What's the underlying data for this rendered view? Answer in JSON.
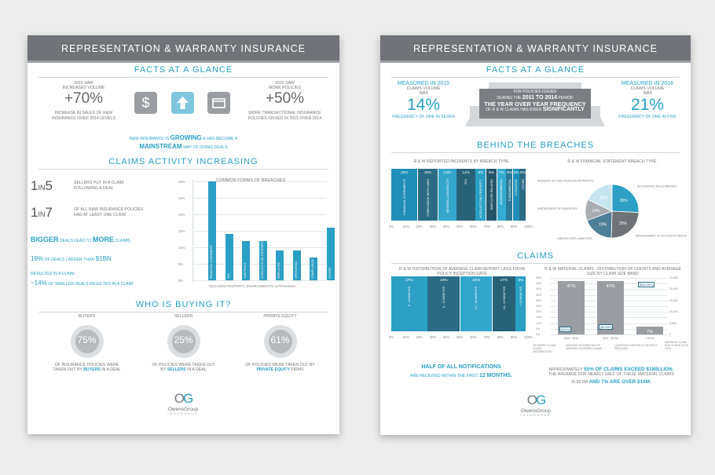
{
  "page1": {
    "banner": "REPRESENTATION & WARRANTY INSURANCE",
    "facts_title": "FACTS AT A GLANCE",
    "left_stat": {
      "caption1": "2015 SAW",
      "caption2": "INCREASED VOLUME",
      "value": "+70%",
      "note1": "INCREASE IN SALES OF R&W",
      "note2": "INSURANCE OVER 2014 LEVELS"
    },
    "right_stat": {
      "caption1": "2015 SAW",
      "caption2": "MORE POLICIES",
      "value": "+50%",
      "note1": "MORE TRANSACTIONAL INSURANCE",
      "note2": "POLICIES ISSUED IN 2015 OVER 2014"
    },
    "icons": [
      "dollar-icon",
      "arrow-up-icon",
      "folder-icon"
    ],
    "growing": {
      "p1": "R&W INSURANCE IS ",
      "p2": "GROWING",
      "p3": " & HAS BECOME A",
      "p4": "MAINSTREAM",
      "p5": " WAY OF DOING DEALS"
    },
    "claims_title": "CLAIMS ACTIVITY INCREASING",
    "ratio1": {
      "n": "1",
      "in": "IN",
      "d": "5",
      "t1": "SELLERS PUT IN A CLAIM",
      "t2": "FOLLOWING A DEAL"
    },
    "ratio2": {
      "n": "1",
      "in": "IN",
      "d": "7",
      "t1": "OF ALL R&W INSURANCE POLICIES",
      "t2": "HAD AT LEAST ONE CLAIM"
    },
    "bigger": {
      "p1": "BIGGER",
      "p2": " DEALS LEAD TO ",
      "p3": "MORE",
      "p4": " CLAIMS"
    },
    "pct19": {
      "p1": "19%",
      "p2": " OF DEALS LARGER THAN ",
      "p3": "$1BN",
      "p4": "RESULTED IN A CLAIM"
    },
    "pct14": {
      "p1": "~14%",
      "p2": " OF SMALLER DEALS RESULTED IN A CLAIM"
    },
    "buying_title": "WHO IS BUYING IT?",
    "buyers": [
      {
        "title": "BUYERS",
        "pct": "75%",
        "value": 75,
        "t1": "OF INSURANCE POLICIES WERE",
        "t2a": "TAKEN OUT BY ",
        "t2b": "BUYERS",
        "t2c": " IN A DEAL"
      },
      {
        "title": "SELLERS",
        "pct": "25%",
        "value": 25,
        "t1": "OF POLICIES WERE TAKEN OUT",
        "t2a": "BY ",
        "t2b": "SELLERS",
        "t2c": " IN A DEAL"
      },
      {
        "title": "PRIVATE EQUITY",
        "pct": "61%",
        "value": 61,
        "t1": "OF POLICIES WERE TAKEN OUT BY",
        "t2a": "",
        "t2b": "PRIVATE EQUITY",
        "t2c": " FIRMS"
      }
    ],
    "logo": {
      "name": "OwensGroup",
      "sub": "INSURANCE"
    }
  },
  "page2": {
    "banner": "REPRESENTATION & WARRANTY INSURANCE",
    "facts_title": "FACTS AT A GLANCE",
    "left": {
      "c1": "MEASURED IN 2015",
      "c2": "CLAIMS VOLUME",
      "c3": "WAS",
      "value": "14%",
      "note": "FREQUENCY OF ONE IN SEVEN"
    },
    "right": {
      "c1": "MEASURED IN 2016",
      "c2": "CLAIMS VOLUME",
      "c3": "WAS",
      "value": "21%",
      "note": "FREQUENCY OF ONE IN FIVE"
    },
    "arrow": {
      "l1": "FOR POLICIES ISSUED",
      "l2a": "DURING THE ",
      "l2b": "2011 TO 2014",
      "l2c": " PERIOD",
      "l3": "THE YEAR OVER YEAR FREQUENCY",
      "l4a": "OF R & W CLAIMS HAS RISEN ",
      "l4b": "SIGNIFICANTLY"
    },
    "breaches_title": "BEHIND THE BREACHES",
    "logo": {
      "name": "OwensGroup",
      "sub": "INSURANCE"
    },
    "claims_title": "CLAIMS",
    "half": {
      "l1a": "HALF OF ALL NOTIFICATIONS",
      "l2a": "ARE RECEIVED WITHIN THE FIRST ",
      "l2b": "12 MONTHS."
    },
    "exceed": {
      "l1a": "APPROXIMATELY ",
      "l1b": "55% OF CLAIMS EXCEED $1MILLION.",
      "l2": "THE AVERAGE FOR NEARLY HALF OF THESE MATERIAL CLAIMS",
      "l3a": "IS $3.5M ",
      "l3b": "AND 7% ARE OVER $10M."
    }
  },
  "chart_data": [
    {
      "type": "bar",
      "title": "COMMON FORMS OF BREACHES",
      "categories": [
        "FINANCIAL STATEMENT",
        "TAX",
        "CONTRACT",
        "INTELLECTUAL PROPERTY",
        "EMPLOYEE",
        "OPERATION",
        "COMPLIANCE",
        "OTHER*"
      ],
      "values": [
        30,
        14,
        12,
        12,
        9,
        9,
        7,
        16
      ],
      "ylim": [
        0,
        30
      ],
      "yticks": [
        "30%",
        "25%",
        "20%",
        "15%",
        "10%",
        "5%",
        "0%"
      ],
      "footnote": "*INCLUDES PROPERTY, ENVIRONMENTAL & PENSIONS"
    },
    {
      "type": "bar",
      "title": "R & W REPORTED INCIDENTS BY BREACH TYPE",
      "categories": [
        "FINANCIAL STATEMENTS",
        "COMPLIANCE WITH LAWS",
        "MATERIAL CONTRACTS",
        "TAX",
        "INTELLECTUAL PROPERTY",
        "EMPLOYEE RELATED",
        "ENVIRONMENTAL",
        "FUNDAMENTAL",
        "LITIGATION",
        "OTHER"
      ],
      "values": [
        20,
        15,
        14,
        14,
        8,
        8,
        7,
        5,
        5,
        5
      ],
      "labels": [
        "20%",
        "15%",
        "14%",
        "14%",
        "8%",
        "8%",
        "7%",
        "5%",
        "5%",
        "5%"
      ],
      "xticks": [
        "0%",
        "10%",
        "20%",
        "30%",
        "40%",
        "50%",
        "60%",
        "70%",
        "80%",
        "90%",
        "100%"
      ]
    },
    {
      "type": "pie",
      "title": "R & W FINANCIAL STATEMENT BREACH TYPE",
      "slices": [
        {
          "label": "ACCOUNTING RULES BREACH",
          "value": 26,
          "text": "26%"
        },
        {
          "label": "MISSTATEMENT OF ACCOUNTS RECEIVABLE/PAYABLE",
          "value": 25,
          "text": "25%"
        },
        {
          "label": "UNDISCLOSED LIABILITIES",
          "value": 19,
          "text": "19%"
        },
        {
          "label": "MISSTATEMENT OF INVENTORY",
          "value": 13,
          "text": "13%"
        },
        {
          "label": "MISSTATEMENT OF CASH POSITION OR PROFITS",
          "value": 18,
          "text": "18%"
        }
      ]
    },
    {
      "type": "bar",
      "title": "R & W DISTRIBUTION OF AVERAGE CLAIM REPORT LAGS FROM POLICY INCEPTION DATE",
      "categories": [
        "0 - 6 MONTHS",
        "6 - 12 MONTHS",
        "12 - 18 MONTHS",
        "18 - 24 MONTHS",
        "> 24 MONTHS"
      ],
      "values": [
        27,
        24,
        24,
        17,
        8
      ],
      "labels": [
        "27%",
        "24%",
        "24%",
        "17%",
        "8%"
      ],
      "xticks": [
        "0%",
        "10%",
        "20%",
        "30%",
        "40%",
        "50%",
        "60%",
        "70%",
        "80%",
        "90%",
        "100%"
      ]
    },
    {
      "type": "bar",
      "title": "R & W MATERIAL CLAIMS - DISTRIBUTION OF COUNTS AND AVERAGE SIZE BY CLAIM SIZE BAND",
      "categories": [
        "$0M - $1M",
        "$1M - $10M",
        "> $10M"
      ],
      "values": [
        47,
        47,
        7
      ],
      "labels": [
        "47%",
        "47%",
        "7%"
      ],
      "avg_sizes": [
        "[$300]",
        "[$3,500]",
        "[$32,000]"
      ],
      "ylim": [
        0,
        50
      ],
      "yticks_left": [
        "50%",
        "45%",
        "40%",
        "35%",
        "30%",
        "25%",
        "20%",
        "15%",
        "10%",
        "5%",
        "0%"
      ],
      "yticks_right": [
        "25,000",
        "20,000",
        "15,000",
        "10,000",
        "5,000",
        "0"
      ],
      "ylabel_left": "INCURRED CLAIM COUNT DISTRIBUTION",
      "ylabel_right": "AVERAGE CLAIM SIZE IN $000 (2015 USD)",
      "legend": [
        "AVERAGE DISTRIBUTION OF MATERIAL INCURRED CLAIMS",
        "[ ] AVERAGE HISTORICAL SEVERITY $000 (USD)"
      ]
    }
  ]
}
